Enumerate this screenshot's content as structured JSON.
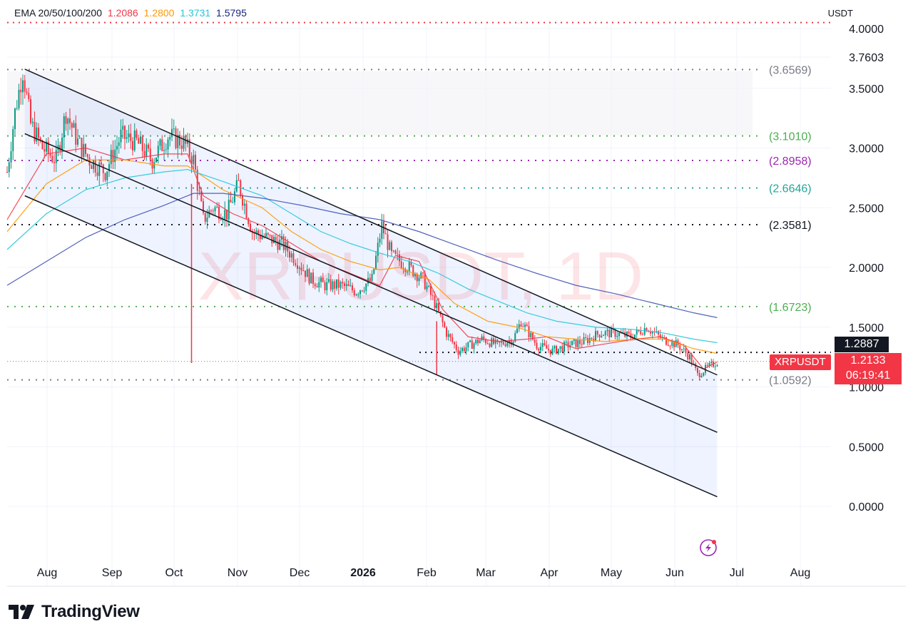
{
  "legend": {
    "indicator_label": "EMA 20/50/100/200",
    "values": [
      {
        "text": "1.2086",
        "color": "#f23645"
      },
      {
        "text": "1.2800",
        "color": "#ff9800"
      },
      {
        "text": "1.3731",
        "color": "#26c6da"
      },
      {
        "text": "1.5795",
        "color": "#1a237e"
      }
    ]
  },
  "currency": "USDT",
  "watermark": "XRPUSDT, 1D",
  "logo_text": "TradingView",
  "price_tag": "1.2887",
  "symbol_tag": "XRPUSDT",
  "last_price": "1.2133",
  "countdown": "06:19:41",
  "chart_data": {
    "type": "candlestick",
    "symbol": "XRPUSDT",
    "interval": "1D",
    "y_ticks": [
      "4.0000",
      "3.7603",
      "3.5000",
      "3.0000",
      "2.5000",
      "2.0000",
      "1.5000",
      "1.0000",
      "0.5000",
      "0.0000"
    ],
    "x_ticks": [
      {
        "label": "Aug",
        "bold": false
      },
      {
        "label": "Sep",
        "bold": false
      },
      {
        "label": "Oct",
        "bold": false
      },
      {
        "label": "Nov",
        "bold": false
      },
      {
        "label": "Dec",
        "bold": false
      },
      {
        "label": "2026",
        "bold": true
      },
      {
        "label": "Feb",
        "bold": false
      },
      {
        "label": "Mar",
        "bold": false
      },
      {
        "label": "Apr",
        "bold": false
      },
      {
        "label": "May",
        "bold": false
      },
      {
        "label": "Jun",
        "bold": false
      },
      {
        "label": "Jul",
        "bold": false
      },
      {
        "label": "Aug",
        "bold": false
      }
    ],
    "levels": [
      {
        "label": "(3.6569)",
        "value": 3.6569,
        "color": "#787b86",
        "line": "#787b86"
      },
      {
        "label": "(3.1010)",
        "value": 3.101,
        "color": "#4caf50",
        "line": "#4caf50"
      },
      {
        "label": "(2.8958)",
        "value": 2.8958,
        "color": "#9c27b0",
        "line": "#9c27b0"
      },
      {
        "label": "(2.6646)",
        "value": 2.6646,
        "color": "#26a69a",
        "line": "#26a69a"
      },
      {
        "label": "(2.3581)",
        "value": 2.3581,
        "color": "#131722",
        "line": "#131722"
      },
      {
        "label": "(1.6723)",
        "value": 1.6723,
        "color": "#4caf50",
        "line": "#4caf50"
      },
      {
        "label": "(1.0592)",
        "value": 1.0592,
        "color": "#787b86",
        "line": "#787b86"
      }
    ],
    "top_line_value": 4.05,
    "black_line_value": 1.2887,
    "current_price": 1.2133,
    "ema": [
      {
        "name": "EMA 20",
        "color": "#f23645",
        "points": [
          [
            0,
            2.4
          ],
          [
            20,
            2.95
          ],
          [
            40,
            3.0
          ],
          [
            60,
            2.9
          ],
          [
            80,
            2.95
          ],
          [
            92,
            2.95
          ],
          [
            100,
            2.6
          ],
          [
            115,
            2.45
          ],
          [
            130,
            2.35
          ],
          [
            145,
            2.2
          ],
          [
            160,
            2.05
          ],
          [
            175,
            1.95
          ],
          [
            190,
            1.85
          ],
          [
            198,
            2.1
          ],
          [
            210,
            2.05
          ],
          [
            222,
            1.65
          ],
          [
            235,
            1.42
          ],
          [
            250,
            1.38
          ],
          [
            265,
            1.4
          ],
          [
            275,
            1.42
          ],
          [
            290,
            1.32
          ],
          [
            305,
            1.36
          ],
          [
            320,
            1.4
          ],
          [
            333,
            1.42
          ],
          [
            345,
            1.35
          ],
          [
            355,
            1.15
          ],
          [
            362,
            1.21
          ]
        ]
      },
      {
        "name": "EMA 50",
        "color": "#ff9800",
        "points": [
          [
            0,
            2.3
          ],
          [
            20,
            2.7
          ],
          [
            40,
            2.9
          ],
          [
            60,
            2.9
          ],
          [
            80,
            2.85
          ],
          [
            92,
            2.85
          ],
          [
            110,
            2.65
          ],
          [
            130,
            2.5
          ],
          [
            145,
            2.3
          ],
          [
            160,
            2.15
          ],
          [
            175,
            2.05
          ],
          [
            190,
            1.98
          ],
          [
            200,
            2.0
          ],
          [
            215,
            1.9
          ],
          [
            228,
            1.7
          ],
          [
            245,
            1.55
          ],
          [
            260,
            1.5
          ],
          [
            275,
            1.42
          ],
          [
            290,
            1.4
          ],
          [
            305,
            1.38
          ],
          [
            320,
            1.4
          ],
          [
            335,
            1.4
          ],
          [
            350,
            1.32
          ],
          [
            362,
            1.28
          ]
        ]
      },
      {
        "name": "EMA 100",
        "color": "#26c6da",
        "points": [
          [
            0,
            2.15
          ],
          [
            20,
            2.45
          ],
          [
            40,
            2.65
          ],
          [
            60,
            2.75
          ],
          [
            80,
            2.8
          ],
          [
            92,
            2.82
          ],
          [
            110,
            2.72
          ],
          [
            130,
            2.6
          ],
          [
            145,
            2.45
          ],
          [
            160,
            2.3
          ],
          [
            175,
            2.2
          ],
          [
            190,
            2.12
          ],
          [
            205,
            2.05
          ],
          [
            220,
            1.95
          ],
          [
            235,
            1.82
          ],
          [
            250,
            1.72
          ],
          [
            265,
            1.62
          ],
          [
            280,
            1.55
          ],
          [
            300,
            1.5
          ],
          [
            320,
            1.48
          ],
          [
            335,
            1.45
          ],
          [
            350,
            1.4
          ],
          [
            362,
            1.37
          ]
        ]
      },
      {
        "name": "EMA 200",
        "color": "#3f51b5",
        "points": [
          [
            0,
            1.85
          ],
          [
            20,
            2.05
          ],
          [
            40,
            2.25
          ],
          [
            60,
            2.4
          ],
          [
            80,
            2.52
          ],
          [
            95,
            2.62
          ],
          [
            110,
            2.62
          ],
          [
            130,
            2.58
          ],
          [
            150,
            2.52
          ],
          [
            170,
            2.45
          ],
          [
            190,
            2.4
          ],
          [
            210,
            2.3
          ],
          [
            230,
            2.18
          ],
          [
            250,
            2.06
          ],
          [
            270,
            1.95
          ],
          [
            290,
            1.85
          ],
          [
            310,
            1.78
          ],
          [
            330,
            1.7
          ],
          [
            350,
            1.62
          ],
          [
            362,
            1.58
          ]
        ]
      }
    ],
    "channel": {
      "upper": [
        [
          9,
          3.66
        ],
        [
          362,
          1.1
        ]
      ],
      "middle": [
        [
          9,
          3.12
        ],
        [
          362,
          0.62
        ]
      ],
      "lower": [
        [
          9,
          2.6
        ],
        [
          362,
          0.08
        ]
      ]
    },
    "candle_path": [
      [
        0,
        2.8
      ],
      [
        4,
        3.3
      ],
      [
        8,
        3.65
      ],
      [
        12,
        3.2
      ],
      [
        18,
        3.0
      ],
      [
        25,
        2.9
      ],
      [
        30,
        3.3
      ],
      [
        36,
        3.05
      ],
      [
        42,
        2.9
      ],
      [
        50,
        2.8
      ],
      [
        58,
        3.1
      ],
      [
        66,
        3.05
      ],
      [
        74,
        2.9
      ],
      [
        82,
        3.1
      ],
      [
        90,
        3.05
      ],
      [
        95,
        2.9
      ],
      [
        100,
        2.4
      ],
      [
        105,
        2.5
      ],
      [
        112,
        2.45
      ],
      [
        118,
        2.7
      ],
      [
        125,
        2.3
      ],
      [
        132,
        2.25
      ],
      [
        140,
        2.2
      ],
      [
        148,
        2.05
      ],
      [
        155,
        1.9
      ],
      [
        162,
        1.85
      ],
      [
        170,
        1.85
      ],
      [
        178,
        1.8
      ],
      [
        186,
        1.9
      ],
      [
        191,
        2.35
      ],
      [
        196,
        2.1
      ],
      [
        205,
        2.0
      ],
      [
        212,
        1.9
      ],
      [
        218,
        1.7
      ],
      [
        224,
        1.45
      ],
      [
        230,
        1.3
      ],
      [
        236,
        1.35
      ],
      [
        242,
        1.4
      ],
      [
        250,
        1.35
      ],
      [
        258,
        1.4
      ],
      [
        262,
        1.55
      ],
      [
        270,
        1.35
      ],
      [
        278,
        1.3
      ],
      [
        286,
        1.35
      ],
      [
        294,
        1.38
      ],
      [
        302,
        1.45
      ],
      [
        310,
        1.45
      ],
      [
        318,
        1.42
      ],
      [
        326,
        1.5
      ],
      [
        334,
        1.4
      ],
      [
        342,
        1.35
      ],
      [
        348,
        1.25
      ],
      [
        352,
        1.1
      ],
      [
        356,
        1.15
      ],
      [
        362,
        1.21
      ]
    ]
  }
}
